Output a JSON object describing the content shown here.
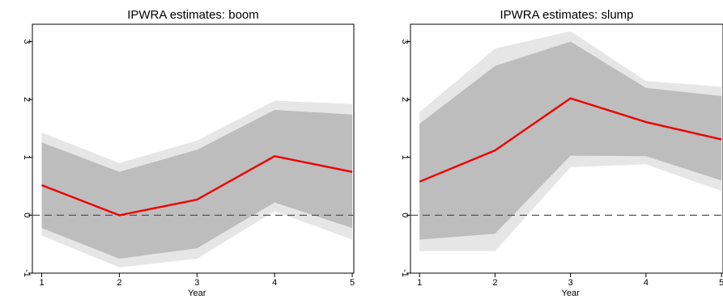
{
  "chart_data": [
    {
      "type": "line",
      "title": "IPWRA estimates: boom",
      "xlabel": "Year",
      "ylabel": "",
      "x": [
        1,
        2,
        3,
        4,
        5
      ],
      "xticks": [
        "1",
        "2",
        "3",
        "4",
        "5"
      ],
      "yticks": [
        "-1",
        "0",
        "1",
        "2",
        "3"
      ],
      "xlim": [
        0.88,
        5.02
      ],
      "ylim": [
        -1.0,
        3.3
      ],
      "reference_line": 0,
      "series": [
        {
          "role": "estimate",
          "color": "#ee0000",
          "values": [
            0.52,
            0.0,
            0.27,
            1.02,
            0.75
          ]
        },
        {
          "role": "outer_band",
          "color": "#e6e6e6",
          "lower": [
            -0.35,
            -0.9,
            -0.75,
            0.07,
            -0.42
          ],
          "upper": [
            1.43,
            0.9,
            1.29,
            1.98,
            1.92
          ]
        },
        {
          "role": "inner_band",
          "color": "#bdbdbd",
          "lower": [
            -0.22,
            -0.75,
            -0.57,
            0.22,
            -0.22
          ],
          "upper": [
            1.26,
            0.75,
            1.13,
            1.82,
            1.74
          ]
        }
      ],
      "grid": false
    },
    {
      "type": "line",
      "title": "IPWRA estimates: slump",
      "xlabel": "Year",
      "ylabel": "",
      "x": [
        1,
        2,
        3,
        4,
        5
      ],
      "xticks": [
        "1",
        "2",
        "3",
        "4",
        "5"
      ],
      "yticks": [
        "-1",
        "0",
        "1",
        "2",
        "3"
      ],
      "xlim": [
        0.88,
        5.02
      ],
      "ylim": [
        -1.0,
        3.3
      ],
      "reference_line": 0,
      "series": [
        {
          "role": "estimate",
          "color": "#ee0000",
          "values": [
            0.58,
            1.12,
            2.02,
            1.61,
            1.31
          ]
        },
        {
          "role": "outer_band",
          "color": "#e6e6e6",
          "lower": [
            -0.62,
            -0.62,
            0.83,
            0.88,
            0.42
          ],
          "upper": [
            1.78,
            2.88,
            3.18,
            2.32,
            2.22
          ]
        },
        {
          "role": "inner_band",
          "color": "#bdbdbd",
          "lower": [
            -0.42,
            -0.32,
            1.03,
            1.02,
            0.6
          ],
          "upper": [
            1.58,
            2.58,
            3.0,
            2.2,
            2.06
          ]
        }
      ],
      "grid": false
    }
  ]
}
